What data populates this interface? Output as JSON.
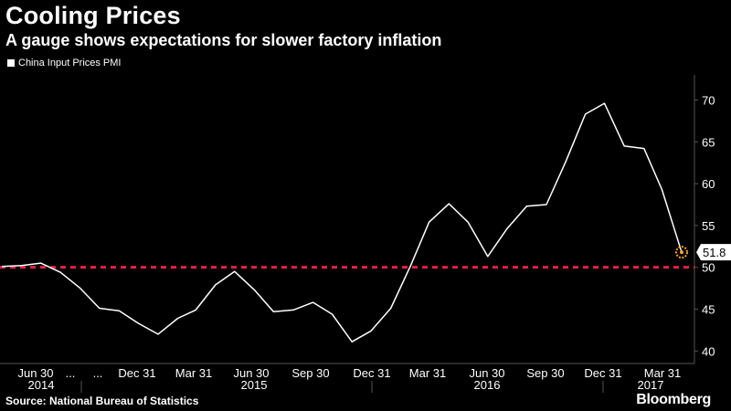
{
  "header": {
    "title": "Cooling Prices",
    "subtitle": "A gauge shows expectations for slower factory inflation"
  },
  "footer": {
    "source": "Source: National Bureau of Statistics",
    "brand": "Bloomberg"
  },
  "colors": {
    "background": "#000000",
    "line": "#ffffff",
    "reference": "#e8204a",
    "marker": "#f5a623",
    "grid": "#555555"
  },
  "chart_data": {
    "type": "line",
    "title": "Cooling Prices",
    "subtitle": "A gauge shows expectations for slower factory inflation",
    "legend": {
      "placement": "top-left"
    },
    "series": [
      {
        "name": "China Input Prices PMI",
        "values": [
          50.1,
          50.2,
          50.5,
          49.4,
          47.5,
          45.1,
          44.8,
          43.3,
          42.0,
          43.9,
          44.9,
          47.9,
          49.5,
          47.3,
          44.7,
          44.9,
          45.8,
          44.4,
          41.1,
          42.4,
          45.1,
          50.2,
          55.4,
          57.6,
          55.4,
          51.3,
          54.6,
          57.3,
          57.5,
          62.6,
          68.3,
          69.6,
          64.5,
          64.2,
          59.3,
          51.8
        ]
      }
    ],
    "x": [
      "2014-04-30",
      "2014-05-31",
      "2014-06-30",
      "2014-07-31",
      "2014-08-31",
      "2014-09-30",
      "2014-10-31",
      "2014-11-30",
      "2014-12-31",
      "2015-01-31",
      "2015-02-28",
      "2015-03-31",
      "2015-04-30",
      "2015-05-31",
      "2015-06-30",
      "2015-07-31",
      "2015-08-31",
      "2015-09-30",
      "2015-10-31",
      "2015-11-30",
      "2015-12-31",
      "2016-01-31",
      "2016-02-29",
      "2016-03-31",
      "2016-04-30",
      "2016-05-31",
      "2016-06-30",
      "2016-07-31",
      "2016-08-31",
      "2016-09-30",
      "2016-10-31",
      "2016-11-30",
      "2016-12-31",
      "2017-01-31",
      "2017-02-28",
      "2017-03-31"
    ],
    "x_tick_labels": [
      "Jun 30",
      "...",
      "...",
      "Dec 31",
      "Mar 31",
      "Jun 30",
      "Sep 30",
      "Dec 31",
      "Mar 31",
      "Jun 30",
      "Sep 30",
      "Dec 31",
      "Mar 31"
    ],
    "year_labels": [
      "2014",
      "2015",
      "2016",
      "2017"
    ],
    "y_ticks": [
      40,
      45,
      50,
      55,
      60,
      65,
      70
    ],
    "ylim": [
      38.5,
      73
    ],
    "reference_line": 50,
    "last_value_label": "51.8",
    "grid": false,
    "y_axis_side": "right"
  }
}
